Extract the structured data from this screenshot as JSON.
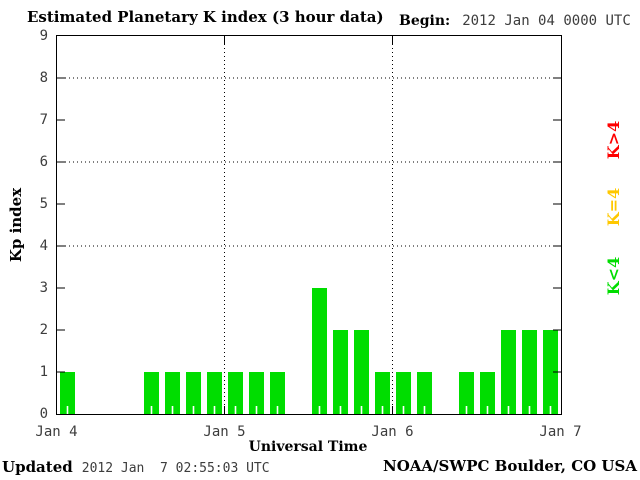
{
  "header": {
    "title": "Estimated Planetary K index (3 hour data)",
    "begin_label": "Begin:",
    "begin_value": "2012 Jan 04 0000 UTC"
  },
  "y_axis": {
    "label": "Kp index",
    "ticks": [
      0,
      1,
      2,
      3,
      4,
      5,
      6,
      7,
      8,
      9
    ]
  },
  "x_axis": {
    "label": "Universal Time",
    "tick_labels": [
      "Jan 4",
      "Jan 5",
      "Jan 6",
      "Jan 7"
    ]
  },
  "legend": {
    "items": [
      {
        "label": "K>4",
        "color": "#ff0000"
      },
      {
        "label": "K=4",
        "color": "#ffc800"
      },
      {
        "label": "K<4",
        "color": "#00dd00"
      }
    ]
  },
  "footer": {
    "updated_label": "Updated",
    "updated_value": "2012 Jan  7 02:55:03 UTC",
    "credit": "NOAA/SWPC Boulder, CO USA"
  },
  "chart_data": {
    "type": "bar",
    "title": "Estimated Planetary K index (3 hour data)",
    "xlabel": "Universal Time",
    "ylabel": "Kp index",
    "ylim": [
      0,
      9
    ],
    "y_ticks": [
      0,
      1,
      2,
      3,
      4,
      5,
      6,
      7,
      8,
      9
    ],
    "h_gridlines": [
      4,
      6,
      8
    ],
    "v_gridlines": [
      "Jan 5",
      "Jan 6"
    ],
    "grid_style": "dotted",
    "bar_color": "#00dd00",
    "interval_hours": 3,
    "days": [
      {
        "date": "Jan 4",
        "values": [
          1,
          0,
          0,
          0,
          1,
          1,
          1,
          1
        ]
      },
      {
        "date": "Jan 5",
        "values": [
          1,
          1,
          1,
          0,
          3,
          2,
          2,
          1
        ]
      },
      {
        "date": "Jan 6",
        "values": [
          1,
          1,
          0,
          1,
          1,
          2,
          2,
          2
        ]
      }
    ]
  }
}
